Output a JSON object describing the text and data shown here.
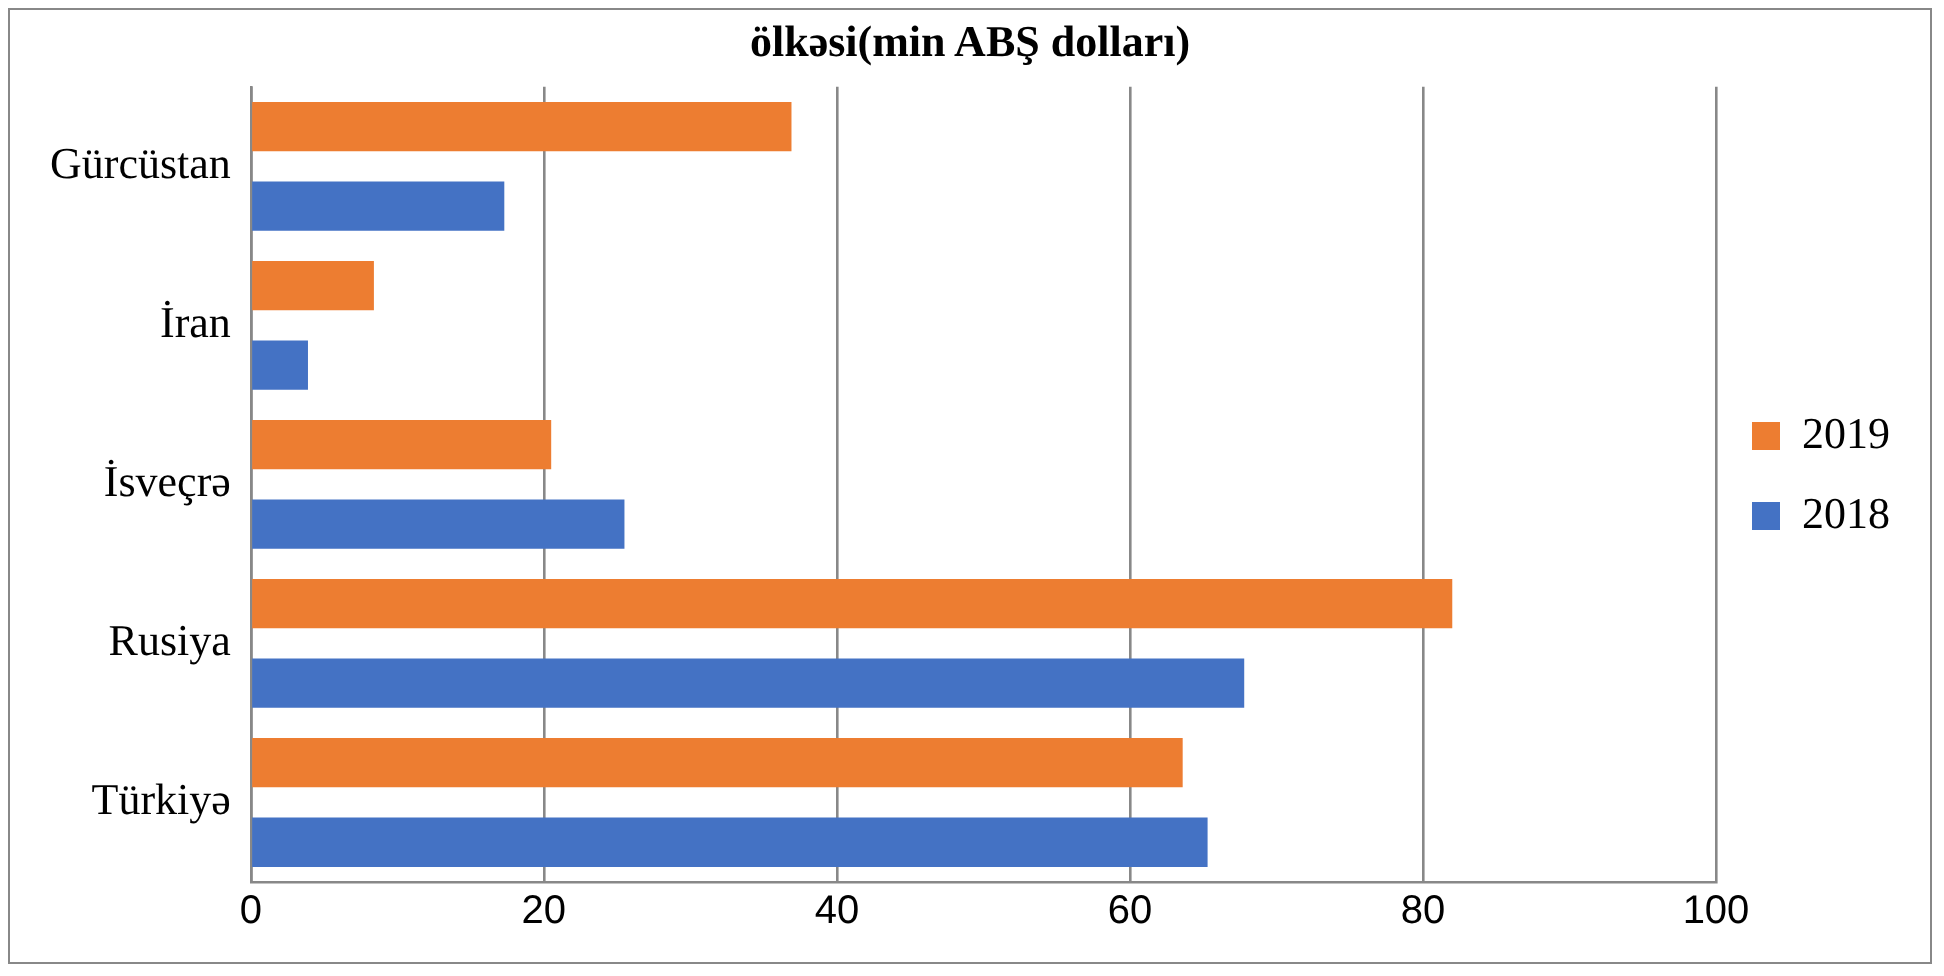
{
  "chart_data": {
    "type": "bar",
    "orientation": "horizontal",
    "title": "ölkəsi(min ABŞ dolları)",
    "categories": [
      "Gürcüstan",
      "İran",
      "İsveçrə",
      "Rusiya",
      "Türkiyə"
    ],
    "series": [
      {
        "name": "2019",
        "color": "#ed7d31",
        "values": [
          36.9,
          8.4,
          20.5,
          82,
          63.6
        ]
      },
      {
        "name": "2018",
        "color": "#4472c4",
        "values": [
          17.3,
          3.9,
          25.5,
          67.8,
          65.3
        ]
      }
    ],
    "xlim": [
      0,
      100
    ],
    "xticks": [
      0,
      20,
      40,
      60,
      80,
      100
    ],
    "grid": "x",
    "legend": "right"
  }
}
